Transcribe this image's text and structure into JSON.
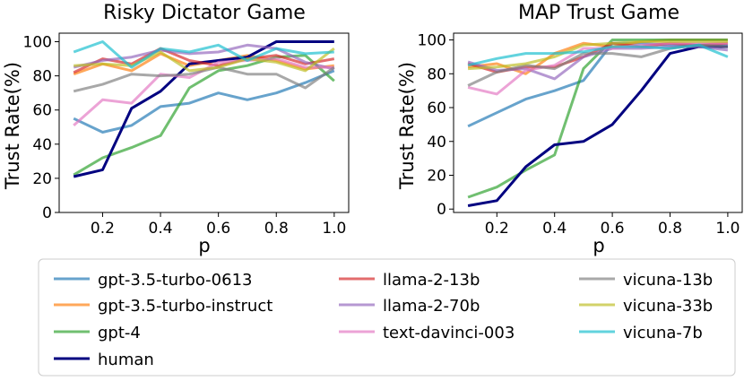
{
  "chart_data": [
    {
      "type": "line",
      "title": "Risky Dictator Game",
      "xlabel": "p",
      "ylabel": "Trust Rate(%)",
      "xlim": [
        0.05,
        1.05
      ],
      "ylim": [
        0,
        105
      ],
      "x": [
        0.1,
        0.2,
        0.3,
        0.4,
        0.5,
        0.6,
        0.7,
        0.8,
        0.9,
        1.0
      ],
      "xticks": [
        "0.2",
        "0.4",
        "0.6",
        "0.8",
        "1.0"
      ],
      "yticks": [
        "0",
        "20",
        "40",
        "60",
        "80",
        "100"
      ],
      "series": [
        {
          "name": "gpt-3.5-turbo-0613",
          "color": "#1f77b4",
          "values": [
            55,
            47,
            51,
            62,
            64,
            70,
            66,
            70,
            76,
            83
          ]
        },
        {
          "name": "gpt-3.5-turbo-instruct",
          "color": "#ff7f0e",
          "values": [
            81,
            87,
            83,
            93,
            86,
            89,
            92,
            89,
            84,
            86
          ]
        },
        {
          "name": "gpt-4",
          "color": "#2ca02c",
          "values": [
            22,
            32,
            38,
            45,
            73,
            83,
            86,
            91,
            92,
            77
          ]
        },
        {
          "name": "human",
          "color": "#000080",
          "values": [
            21,
            25,
            61,
            71,
            87,
            89,
            91,
            100,
            100,
            100
          ]
        },
        {
          "name": "llama-2-13b",
          "color": "#d62728",
          "values": [
            82,
            90,
            87,
            96,
            89,
            86,
            90,
            92,
            87,
            90
          ]
        },
        {
          "name": "llama-2-70b",
          "color": "#9467bd",
          "values": [
            85,
            89,
            91,
            95,
            93,
            94,
            98,
            96,
            88,
            84
          ]
        },
        {
          "name": "text-davinci-003",
          "color": "#e377c2",
          "values": [
            51,
            66,
            64,
            81,
            79,
            88,
            89,
            90,
            85,
            85
          ]
        },
        {
          "name": "vicuna-13b",
          "color": "#7f7f7f",
          "values": [
            71,
            75,
            81,
            80,
            81,
            85,
            81,
            81,
            73,
            85
          ]
        },
        {
          "name": "vicuna-33b",
          "color": "#bcbd22",
          "values": [
            86,
            87,
            86,
            94,
            83,
            85,
            90,
            88,
            83,
            96
          ]
        },
        {
          "name": "vicuna-7b",
          "color": "#17becf",
          "values": [
            94,
            100,
            85,
            96,
            94,
            98,
            89,
            96,
            93,
            94
          ]
        }
      ]
    },
    {
      "type": "line",
      "title": "MAP Trust Game",
      "xlabel": "p",
      "ylabel": "Trust Rate(%)",
      "xlim": [
        0.05,
        1.05
      ],
      "ylim": [
        -2,
        104
      ],
      "x": [
        0.1,
        0.2,
        0.3,
        0.4,
        0.5,
        0.6,
        0.7,
        0.8,
        0.9,
        1.0
      ],
      "xticks": [
        "0.2",
        "0.4",
        "0.6",
        "0.8",
        "1.0"
      ],
      "yticks": [
        "0",
        "20",
        "40",
        "60",
        "80",
        "100"
      ],
      "series": [
        {
          "name": "gpt-3.5-turbo-0613",
          "color": "#1f77b4",
          "values": [
            49,
            57,
            65,
            70,
            76,
            98,
            98,
            97,
            97,
            97
          ]
        },
        {
          "name": "gpt-3.5-turbo-instruct",
          "color": "#ff7f0e",
          "values": [
            84,
            86,
            80,
            92,
            98,
            96,
            99,
            100,
            100,
            100
          ]
        },
        {
          "name": "gpt-4",
          "color": "#2ca02c",
          "values": [
            7,
            13,
            23,
            32,
            83,
            100,
            100,
            100,
            100,
            100
          ]
        },
        {
          "name": "human",
          "color": "#000080",
          "values": [
            2,
            5,
            25,
            38,
            40,
            50,
            70,
            92,
            96,
            96
          ]
        },
        {
          "name": "llama-2-13b",
          "color": "#d62728",
          "values": [
            86,
            81,
            84,
            84,
            90,
            98,
            96,
            98,
            97,
            98
          ]
        },
        {
          "name": "llama-2-70b",
          "color": "#9467bd",
          "values": [
            87,
            82,
            83,
            77,
            90,
            95,
            95,
            96,
            96,
            94
          ]
        },
        {
          "name": "text-davinci-003",
          "color": "#e377c2",
          "values": [
            72,
            68,
            82,
            85,
            95,
            95,
            97,
            98,
            98,
            98
          ]
        },
        {
          "name": "vicuna-13b",
          "color": "#7f7f7f",
          "values": [
            73,
            81,
            85,
            83,
            92,
            92,
            90,
            95,
            97,
            96
          ]
        },
        {
          "name": "vicuna-33b",
          "color": "#bcbd22",
          "values": [
            83,
            84,
            86,
            90,
            97,
            98,
            99,
            99,
            99,
            99
          ]
        },
        {
          "name": "vicuna-7b",
          "color": "#17becf",
          "values": [
            85,
            89,
            92,
            92,
            93,
            96,
            96,
            95,
            97,
            90
          ]
        }
      ]
    }
  ],
  "legend": {
    "entries": [
      "gpt-3.5-turbo-0613",
      "gpt-3.5-turbo-instruct",
      "gpt-4",
      "human",
      "llama-2-13b",
      "llama-2-70b",
      "text-davinci-003",
      "vicuna-13b",
      "vicuna-33b",
      "vicuna-7b"
    ]
  }
}
